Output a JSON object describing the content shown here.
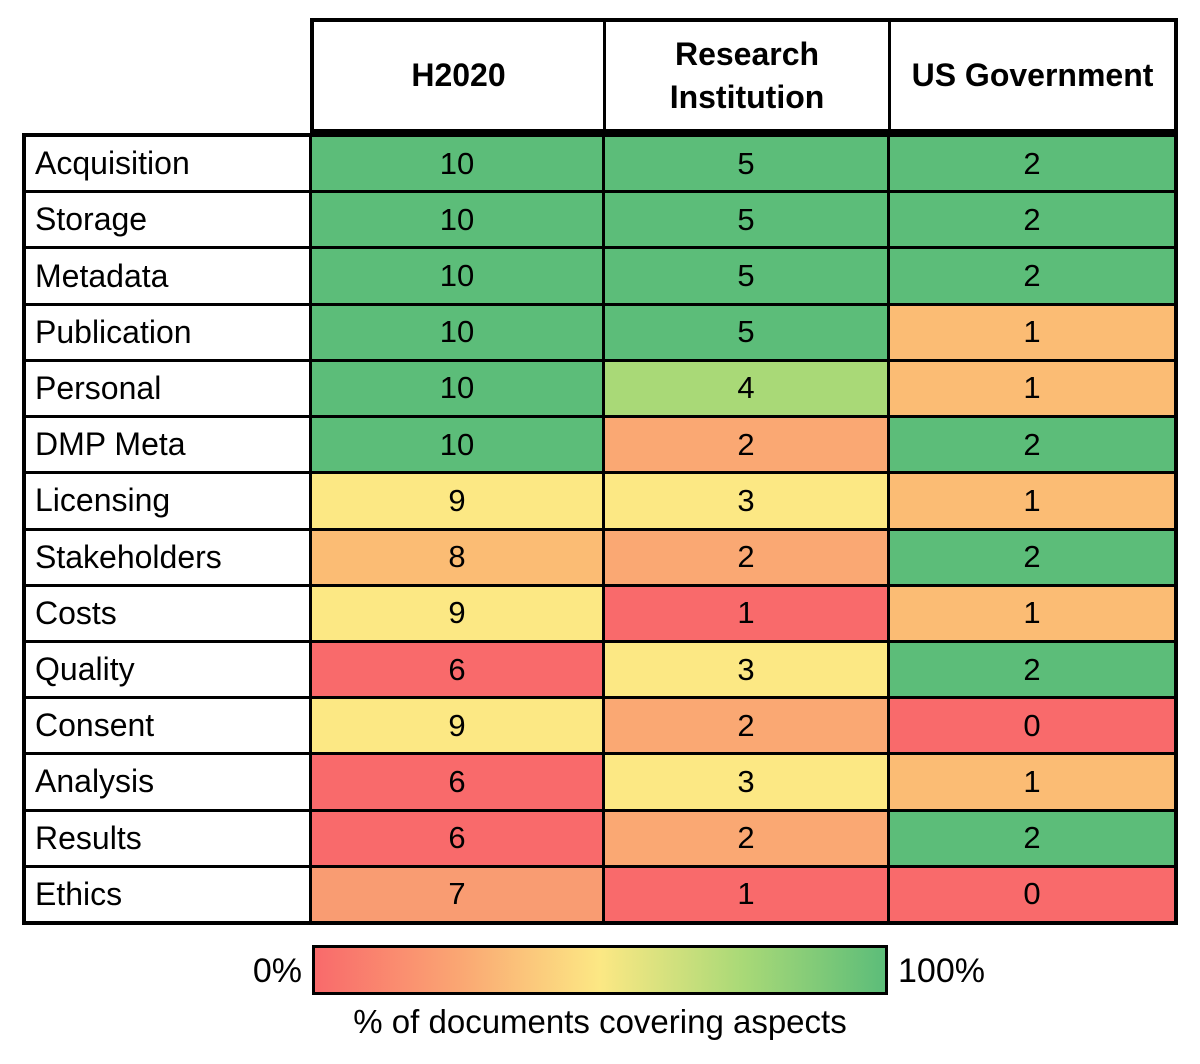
{
  "header": {
    "columns": [
      "H2020",
      "Research Institution",
      "US Government"
    ]
  },
  "palette": {
    "green": "#5CBD79",
    "lightgreen": "#A9D977",
    "yellow": "#FCE884",
    "orange": "#FBBC74",
    "salmon": "#FAA873",
    "redorange": "#F99C72",
    "red": "#F96A6B"
  },
  "table": {
    "rows": [
      {
        "label": "Acquisition",
        "values": [
          10,
          5,
          2
        ],
        "cell_colors": [
          "green",
          "green",
          "green"
        ]
      },
      {
        "label": "Storage",
        "values": [
          10,
          5,
          2
        ],
        "cell_colors": [
          "green",
          "green",
          "green"
        ]
      },
      {
        "label": "Metadata",
        "values": [
          10,
          5,
          2
        ],
        "cell_colors": [
          "green",
          "green",
          "green"
        ]
      },
      {
        "label": "Publication",
        "values": [
          10,
          5,
          1
        ],
        "cell_colors": [
          "green",
          "green",
          "orange"
        ]
      },
      {
        "label": "Personal",
        "values": [
          10,
          4,
          1
        ],
        "cell_colors": [
          "green",
          "lightgreen",
          "orange"
        ]
      },
      {
        "label": "DMP Meta",
        "values": [
          10,
          2,
          2
        ],
        "cell_colors": [
          "green",
          "salmon",
          "green"
        ]
      },
      {
        "label": "Licensing",
        "values": [
          9,
          3,
          1
        ],
        "cell_colors": [
          "yellow",
          "yellow",
          "orange"
        ]
      },
      {
        "label": "Stakeholders",
        "values": [
          8,
          2,
          2
        ],
        "cell_colors": [
          "orange",
          "salmon",
          "green"
        ]
      },
      {
        "label": "Costs",
        "values": [
          9,
          1,
          1
        ],
        "cell_colors": [
          "yellow",
          "red",
          "orange"
        ]
      },
      {
        "label": "Quality",
        "values": [
          6,
          3,
          2
        ],
        "cell_colors": [
          "red",
          "yellow",
          "green"
        ]
      },
      {
        "label": "Consent",
        "values": [
          9,
          2,
          0
        ],
        "cell_colors": [
          "yellow",
          "salmon",
          "red"
        ]
      },
      {
        "label": "Analysis",
        "values": [
          6,
          3,
          1
        ],
        "cell_colors": [
          "red",
          "yellow",
          "orange"
        ]
      },
      {
        "label": "Results",
        "values": [
          6,
          2,
          2
        ],
        "cell_colors": [
          "red",
          "salmon",
          "green"
        ]
      },
      {
        "label": "Ethics",
        "values": [
          7,
          1,
          0
        ],
        "cell_colors": [
          "redorange",
          "red",
          "red"
        ]
      }
    ]
  },
  "legend": {
    "min_label": "0%",
    "max_label": "100%",
    "caption": "% of documents covering aspects"
  },
  "chart_data": {
    "type": "heatmap",
    "title": "",
    "rows": [
      "Acquisition",
      "Storage",
      "Metadata",
      "Publication",
      "Personal",
      "DMP Meta",
      "Licensing",
      "Stakeholders",
      "Costs",
      "Quality",
      "Consent",
      "Analysis",
      "Results",
      "Ethics"
    ],
    "columns": [
      "H2020",
      "Research Institution",
      "US Government"
    ],
    "values": [
      [
        10,
        5,
        2
      ],
      [
        10,
        5,
        2
      ],
      [
        10,
        5,
        2
      ],
      [
        10,
        5,
        1
      ],
      [
        10,
        4,
        1
      ],
      [
        10,
        2,
        2
      ],
      [
        9,
        3,
        1
      ],
      [
        8,
        2,
        2
      ],
      [
        9,
        1,
        1
      ],
      [
        6,
        3,
        2
      ],
      [
        9,
        2,
        0
      ],
      [
        6,
        3,
        1
      ],
      [
        6,
        2,
        2
      ],
      [
        7,
        1,
        0
      ]
    ],
    "colorscale": {
      "label": "% of documents covering aspects",
      "min_label": "0%",
      "max_label": "100%",
      "min_color": "#F96A6B",
      "mid_color": "#FCE884",
      "max_color": "#5CBD79"
    },
    "legend_position": "bottom"
  }
}
